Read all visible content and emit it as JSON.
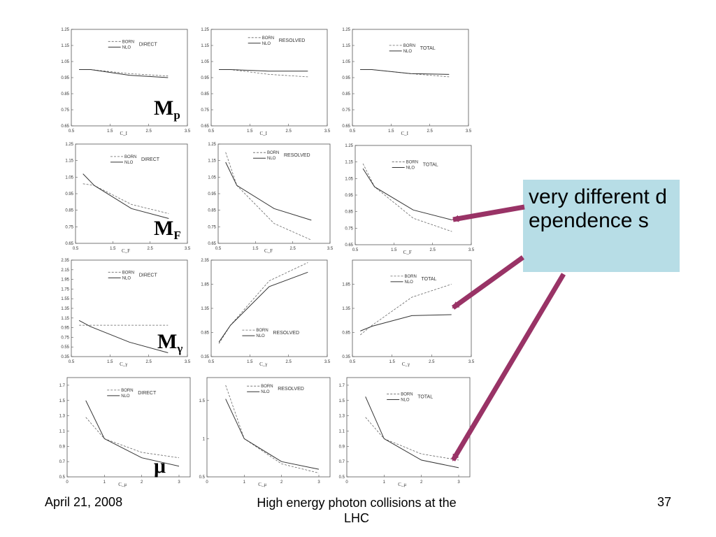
{
  "callout": {
    "text": "very different dependence s"
  },
  "scale_labels": [
    {
      "main": "M",
      "sub": "p"
    },
    {
      "main": "M",
      "sub": "F"
    },
    {
      "main": "M",
      "sub": "γ"
    },
    {
      "main": "μ",
      "sub": ""
    }
  ],
  "footer": {
    "date": "April 21, 2008",
    "title": "High energy photon collisions at the LHC",
    "page": "37"
  },
  "legend": {
    "born": "BORN",
    "nlo": "NLO"
  },
  "colors": {
    "callout_bg": "#b7dde6",
    "arrow": "#993366",
    "born_line": "#666666",
    "nlo_line": "#333333"
  },
  "chart_data": [
    {
      "type": "line",
      "row": "Mp",
      "title": "DIRECT",
      "xlabel": "C_I",
      "xlim": [
        0.5,
        3.5
      ],
      "ylim": [
        0.65,
        1.25
      ],
      "xticks": [
        "0.5",
        "1.5",
        "2.5",
        "3.5"
      ],
      "yticks": [
        "0.65",
        "0.75",
        "0.85",
        "0.95",
        "1.05",
        "1.15",
        "1.25"
      ],
      "series": [
        {
          "name": "BORN",
          "x": [
            0.7,
            1.0,
            2.0,
            3.0
          ],
          "values": [
            1.0,
            1.0,
            0.975,
            0.96
          ]
        },
        {
          "name": "NLO",
          "x": [
            0.7,
            1.0,
            2.0,
            3.0
          ],
          "values": [
            1.0,
            1.0,
            0.965,
            0.95
          ]
        }
      ]
    },
    {
      "type": "line",
      "row": "Mp",
      "title": "RESOLVED",
      "xlabel": "C_I",
      "xlim": [
        0.5,
        3.5
      ],
      "ylim": [
        0.65,
        1.25
      ],
      "xticks": [
        "0.5",
        "1.5",
        "2.5",
        "3.5"
      ],
      "yticks": [
        "0.65",
        "0.75",
        "0.85",
        "0.95",
        "1.05",
        "1.15",
        "1.25"
      ],
      "series": [
        {
          "name": "BORN",
          "x": [
            0.7,
            1.0,
            2.0,
            3.0
          ],
          "values": [
            1.0,
            1.0,
            0.97,
            0.955
          ]
        },
        {
          "name": "NLO",
          "x": [
            0.7,
            1.0,
            2.0,
            3.0
          ],
          "values": [
            1.0,
            1.0,
            0.99,
            0.99
          ]
        }
      ]
    },
    {
      "type": "line",
      "row": "Mp",
      "title": "TOTAL",
      "xlabel": "C_I",
      "xlim": [
        0.5,
        3.5
      ],
      "ylim": [
        0.65,
        1.25
      ],
      "xticks": [
        "0.5",
        "1.5",
        "2.5",
        "3.5"
      ],
      "yticks": [
        "0.65",
        "0.75",
        "0.85",
        "0.95",
        "1.05",
        "1.15",
        "1.25"
      ],
      "series": [
        {
          "name": "BORN",
          "x": [
            0.7,
            1.0,
            2.0,
            3.0
          ],
          "values": [
            1.0,
            1.0,
            0.975,
            0.955
          ]
        },
        {
          "name": "NLO",
          "x": [
            0.7,
            1.0,
            2.0,
            3.0
          ],
          "values": [
            1.0,
            1.0,
            0.975,
            0.97
          ]
        }
      ]
    },
    {
      "type": "line",
      "row": "MF",
      "title": "DIRECT",
      "xlabel": "C_F",
      "xlim": [
        0.5,
        3.5
      ],
      "ylim": [
        0.65,
        1.25
      ],
      "xticks": [
        "0.5",
        "1.5",
        "2.5",
        "3.5"
      ],
      "yticks": [
        "0.65",
        "0.75",
        "0.85",
        "0.95",
        "1.05",
        "1.15",
        "1.25"
      ],
      "series": [
        {
          "name": "BORN",
          "x": [
            0.7,
            1.0,
            2.0,
            3.0
          ],
          "values": [
            1.01,
            1.0,
            0.885,
            0.83
          ]
        },
        {
          "name": "NLO",
          "x": [
            0.7,
            1.0,
            2.0,
            3.0
          ],
          "values": [
            1.07,
            1.0,
            0.86,
            0.8
          ]
        }
      ]
    },
    {
      "type": "line",
      "row": "MF",
      "title": "RESOLVED",
      "xlabel": "C_F",
      "xlim": [
        0.5,
        3.5
      ],
      "ylim": [
        0.65,
        1.25
      ],
      "xticks": [
        "0.5",
        "1.5",
        "2.5",
        "3.5"
      ],
      "yticks": [
        "0.65",
        "0.75",
        "0.85",
        "0.95",
        "1.05",
        "1.15",
        "1.25"
      ],
      "series": [
        {
          "name": "BORN",
          "x": [
            0.7,
            1.0,
            2.0,
            3.0
          ],
          "values": [
            1.2,
            1.0,
            0.77,
            0.67
          ]
        },
        {
          "name": "NLO",
          "x": [
            0.7,
            1.0,
            2.0,
            3.0
          ],
          "values": [
            1.14,
            1.0,
            0.86,
            0.79
          ]
        }
      ]
    },
    {
      "type": "line",
      "row": "MF",
      "title": "TOTAL",
      "xlabel": "C_F",
      "xlim": [
        0.5,
        3.5
      ],
      "ylim": [
        0.65,
        1.25
      ],
      "xticks": [
        "0.5",
        "1.5",
        "2.5",
        "3.5"
      ],
      "yticks": [
        "0.65",
        "0.75",
        "0.85",
        "0.95",
        "1.05",
        "1.15",
        "1.25"
      ],
      "series": [
        {
          "name": "BORN",
          "x": [
            0.7,
            1.0,
            2.0,
            3.0
          ],
          "values": [
            1.14,
            1.0,
            0.81,
            0.73
          ]
        },
        {
          "name": "NLO",
          "x": [
            0.7,
            1.0,
            2.0,
            3.0
          ],
          "values": [
            1.11,
            1.0,
            0.86,
            0.8
          ]
        }
      ]
    },
    {
      "type": "line",
      "row": "Mgamma",
      "title": "DIRECT",
      "xlabel": "C_γ",
      "xlim": [
        0.5,
        3.5
      ],
      "ylim": [
        0.35,
        2.35
      ],
      "xticks": [
        "0.5",
        "1.5",
        "2.5",
        "3.5"
      ],
      "yticks": [
        "0.35",
        "0.55",
        "0.75",
        "0.95",
        "1.15",
        "1.35",
        "1.55",
        "1.75",
        "1.95",
        "2.15",
        "2.35"
      ],
      "series": [
        {
          "name": "BORN",
          "x": [
            0.7,
            1.0,
            2.0,
            3.0
          ],
          "values": [
            1.0,
            1.0,
            1.0,
            1.0
          ]
        },
        {
          "name": "NLO",
          "x": [
            0.7,
            1.0,
            2.0,
            3.0
          ],
          "values": [
            1.1,
            0.97,
            0.65,
            0.43
          ]
        }
      ]
    },
    {
      "type": "line",
      "row": "Mgamma",
      "title": "RESOLVED",
      "xlabel": "C_γ",
      "xlim": [
        0.5,
        3.5
      ],
      "ylim": [
        0.35,
        2.35
      ],
      "xticks": [
        "0.5",
        "1.5",
        "2.5",
        "3.5"
      ],
      "yticks": [
        "0.35",
        "0.85",
        "1.35",
        "1.85",
        "2.35"
      ],
      "series": [
        {
          "name": "BORN",
          "x": [
            0.7,
            1.0,
            2.0,
            3.0
          ],
          "values": [
            0.62,
            1.0,
            1.92,
            2.3
          ]
        },
        {
          "name": "NLO",
          "x": [
            0.7,
            1.0,
            2.0,
            3.0
          ],
          "values": [
            0.65,
            1.0,
            1.8,
            2.1
          ]
        }
      ]
    },
    {
      "type": "line",
      "row": "Mgamma",
      "title": "TOTAL",
      "xlabel": "C_γ",
      "xlim": [
        0.5,
        3.5
      ],
      "ylim": [
        0.35,
        2.35
      ],
      "xticks": [
        "0.5",
        "1.5",
        "2.5",
        "3.5"
      ],
      "yticks": [
        "0.35",
        "0.85",
        "1.35",
        "1.85"
      ],
      "series": [
        {
          "name": "BORN",
          "x": [
            0.7,
            1.0,
            2.0,
            3.0
          ],
          "values": [
            0.8,
            1.0,
            1.58,
            1.85
          ]
        },
        {
          "name": "NLO",
          "x": [
            0.7,
            1.0,
            2.0,
            3.0
          ],
          "values": [
            0.88,
            0.98,
            1.2,
            1.22
          ]
        }
      ]
    },
    {
      "type": "line",
      "row": "mu",
      "title": "DIRECT",
      "xlabel": "C_μ",
      "xlim": [
        0,
        3.3
      ],
      "ylim": [
        0.5,
        1.8
      ],
      "xticks": [
        "0",
        "1",
        "2",
        "3"
      ],
      "yticks": [
        "0.5",
        "0.7",
        "0.9",
        "1.1",
        "1.3",
        "1.5",
        "1.7"
      ],
      "series": [
        {
          "name": "BORN",
          "x": [
            0.5,
            1.0,
            2.0,
            3.0
          ],
          "values": [
            1.28,
            1.0,
            0.82,
            0.75
          ]
        },
        {
          "name": "NLO",
          "x": [
            0.5,
            1.0,
            2.0,
            3.0
          ],
          "values": [
            1.5,
            1.0,
            0.75,
            0.64
          ]
        }
      ]
    },
    {
      "type": "line",
      "row": "mu",
      "title": "RESOLVED",
      "xlabel": "C_μ",
      "xlim": [
        0,
        3.3
      ],
      "ylim": [
        0.5,
        1.8
      ],
      "xticks": [
        "0",
        "1",
        "2",
        "3"
      ],
      "yticks": [
        "0.5",
        "1",
        "1.5"
      ],
      "series": [
        {
          "name": "BORN",
          "x": [
            0.5,
            1.0,
            2.0,
            3.0
          ],
          "values": [
            1.7,
            1.0,
            0.67,
            0.55
          ]
        },
        {
          "name": "NLO",
          "x": [
            0.5,
            1.0,
            2.0,
            3.0
          ],
          "values": [
            1.52,
            1.0,
            0.7,
            0.6
          ]
        }
      ]
    },
    {
      "type": "line",
      "row": "mu",
      "title": "TOTAL",
      "xlabel": "C_μ",
      "xlim": [
        0,
        3.3
      ],
      "ylim": [
        0.5,
        1.8
      ],
      "xticks": [
        "0",
        "1",
        "2",
        "3"
      ],
      "yticks": [
        "0.5",
        "0.7",
        "0.9",
        "1.1",
        "1.3",
        "1.5",
        "1.7"
      ],
      "series": [
        {
          "name": "BORN",
          "x": [
            0.5,
            1.0,
            2.0,
            3.0
          ],
          "values": [
            1.28,
            1.0,
            0.8,
            0.72
          ]
        },
        {
          "name": "NLO",
          "x": [
            0.5,
            1.0,
            2.0,
            3.0
          ],
          "values": [
            1.55,
            1.0,
            0.72,
            0.62
          ]
        }
      ]
    }
  ]
}
